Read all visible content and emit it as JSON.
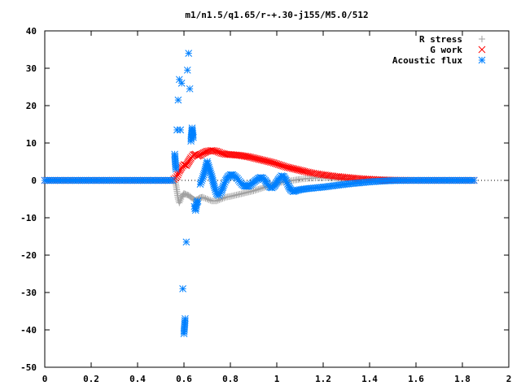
{
  "chart_data": {
    "type": "scatter",
    "title": "m1/n1.5/q1.65/r-+.30-j155/M5.0/512",
    "xlabel": "",
    "ylabel": "",
    "xlim": [
      0,
      2
    ],
    "ylim": [
      -50,
      40
    ],
    "xticks": [
      0,
      0.2,
      0.4,
      0.6,
      0.8,
      1,
      1.2,
      1.4,
      1.6,
      1.8,
      2
    ],
    "xtick_labels": [
      "0",
      "0.2",
      "0.4",
      "0.6",
      "0.8",
      "1",
      "1.2",
      "1.4",
      "1.6",
      "1.8",
      "2"
    ],
    "yticks": [
      -50,
      -40,
      -30,
      -20,
      -10,
      0,
      10,
      20,
      30,
      40
    ],
    "ytick_labels": [
      "-50",
      "-40",
      "-30",
      "-20",
      "-10",
      "0",
      "10",
      "20",
      "30",
      "40"
    ],
    "grid": false,
    "legend_position": "top-right",
    "series": [
      {
        "name": "R stress",
        "marker": "+",
        "color": "#a0a0a0",
        "points": [
          [
            0.0,
            0.0
          ],
          [
            0.1,
            0.0
          ],
          [
            0.2,
            0.0
          ],
          [
            0.3,
            0.0
          ],
          [
            0.4,
            0.0
          ],
          [
            0.5,
            0.0
          ],
          [
            0.55,
            0.0
          ],
          [
            0.56,
            0.5
          ],
          [
            0.565,
            -1.0
          ],
          [
            0.57,
            -3.0
          ],
          [
            0.575,
            -5.0
          ],
          [
            0.58,
            -6.0
          ],
          [
            0.59,
            -4.5
          ],
          [
            0.6,
            -3.5
          ],
          [
            0.61,
            -3.8
          ],
          [
            0.62,
            -4.0
          ],
          [
            0.63,
            -4.5
          ],
          [
            0.64,
            -5.0
          ],
          [
            0.65,
            -5.3
          ],
          [
            0.66,
            -5.0
          ],
          [
            0.67,
            -4.6
          ],
          [
            0.68,
            -4.5
          ],
          [
            0.7,
            -5.0
          ],
          [
            0.72,
            -5.5
          ],
          [
            0.74,
            -5.5
          ],
          [
            0.76,
            -5.0
          ],
          [
            0.78,
            -4.5
          ],
          [
            0.8,
            -4.3
          ],
          [
            0.82,
            -4.0
          ],
          [
            0.84,
            -3.7
          ],
          [
            0.86,
            -3.4
          ],
          [
            0.88,
            -3.1
          ],
          [
            0.9,
            -2.8
          ],
          [
            0.92,
            -2.4
          ],
          [
            0.94,
            -2.0
          ],
          [
            0.96,
            -1.6
          ],
          [
            0.98,
            -1.2
          ],
          [
            1.0,
            -0.8
          ],
          [
            1.02,
            -0.5
          ],
          [
            1.05,
            -0.2
          ],
          [
            1.08,
            0.1
          ],
          [
            1.1,
            0.3
          ],
          [
            1.15,
            0.6
          ],
          [
            1.2,
            0.7
          ],
          [
            1.25,
            0.6
          ],
          [
            1.3,
            0.4
          ],
          [
            1.35,
            0.25
          ],
          [
            1.4,
            0.15
          ],
          [
            1.5,
            0.05
          ],
          [
            1.6,
            0.0
          ],
          [
            1.7,
            0.0
          ],
          [
            1.8,
            0.0
          ],
          [
            1.85,
            0.0
          ]
        ]
      },
      {
        "name": "G work",
        "marker": "x",
        "color": "#ff0000",
        "points": [
          [
            0.0,
            0.0
          ],
          [
            0.1,
            0.0
          ],
          [
            0.2,
            0.0
          ],
          [
            0.3,
            0.0
          ],
          [
            0.4,
            0.0
          ],
          [
            0.5,
            0.0
          ],
          [
            0.55,
            0.0
          ],
          [
            0.57,
            1.0
          ],
          [
            0.58,
            2.5
          ],
          [
            0.59,
            3.5
          ],
          [
            0.6,
            4.2
          ],
          [
            0.61,
            4.0
          ],
          [
            0.62,
            5.0
          ],
          [
            0.63,
            6.0
          ],
          [
            0.64,
            6.8
          ],
          [
            0.65,
            7.0
          ],
          [
            0.66,
            6.5
          ],
          [
            0.67,
            6.8
          ],
          [
            0.68,
            7.2
          ],
          [
            0.69,
            7.5
          ],
          [
            0.7,
            7.8
          ],
          [
            0.72,
            8.0
          ],
          [
            0.74,
            7.8
          ],
          [
            0.76,
            7.3
          ],
          [
            0.78,
            7.0
          ],
          [
            0.8,
            6.9
          ],
          [
            0.82,
            6.8
          ],
          [
            0.84,
            6.7
          ],
          [
            0.86,
            6.5
          ],
          [
            0.88,
            6.3
          ],
          [
            0.9,
            6.0
          ],
          [
            0.92,
            5.7
          ],
          [
            0.94,
            5.4
          ],
          [
            0.96,
            5.1
          ],
          [
            0.98,
            4.8
          ],
          [
            1.0,
            4.4
          ],
          [
            1.02,
            4.0
          ],
          [
            1.04,
            3.6
          ],
          [
            1.06,
            3.3
          ],
          [
            1.08,
            3.0
          ],
          [
            1.1,
            2.7
          ],
          [
            1.12,
            2.4
          ],
          [
            1.15,
            2.0
          ],
          [
            1.2,
            1.5
          ],
          [
            1.25,
            1.1
          ],
          [
            1.3,
            0.8
          ],
          [
            1.35,
            0.5
          ],
          [
            1.4,
            0.3
          ],
          [
            1.45,
            0.15
          ],
          [
            1.5,
            0.05
          ],
          [
            1.6,
            0.0
          ],
          [
            1.7,
            0.0
          ],
          [
            1.8,
            0.0
          ],
          [
            1.85,
            0.0
          ]
        ]
      },
      {
        "name": "Acoustic flux",
        "marker": "*",
        "color": "#0080ff",
        "points": [
          [
            0.0,
            0.0
          ],
          [
            0.05,
            0.0
          ],
          [
            0.1,
            0.0
          ],
          [
            0.15,
            0.0
          ],
          [
            0.2,
            0.0
          ],
          [
            0.25,
            0.0
          ],
          [
            0.3,
            0.0
          ],
          [
            0.35,
            0.0
          ],
          [
            0.4,
            0.0
          ],
          [
            0.45,
            0.0
          ],
          [
            0.5,
            0.0
          ],
          [
            0.55,
            0.0
          ],
          [
            0.56,
            7.0
          ],
          [
            0.565,
            3.0
          ],
          [
            0.57,
            13.5
          ],
          [
            0.575,
            21.5
          ],
          [
            0.58,
            27.0
          ],
          [
            0.585,
            13.5
          ],
          [
            0.59,
            26.0
          ],
          [
            0.595,
            -29.0
          ],
          [
            0.6,
            -41.0
          ],
          [
            0.605,
            -37.0
          ],
          [
            0.61,
            -16.5
          ],
          [
            0.615,
            29.5
          ],
          [
            0.62,
            34.0
          ],
          [
            0.625,
            24.5
          ],
          [
            0.63,
            10.5
          ],
          [
            0.635,
            14.0
          ],
          [
            0.64,
            11.5
          ],
          [
            0.645,
            -7.0
          ],
          [
            0.65,
            -8.0
          ],
          [
            0.655,
            -6.0
          ],
          [
            0.66,
            -5.5
          ],
          [
            0.67,
            -1.0
          ],
          [
            0.68,
            0.5
          ],
          [
            0.69,
            2.5
          ],
          [
            0.7,
            5.0
          ],
          [
            0.71,
            3.0
          ],
          [
            0.72,
            1.0
          ],
          [
            0.73,
            -1.5
          ],
          [
            0.74,
            -3.5
          ],
          [
            0.75,
            -4.0
          ],
          [
            0.76,
            -3.2
          ],
          [
            0.77,
            -1.5
          ],
          [
            0.78,
            0.0
          ],
          [
            0.79,
            1.0
          ],
          [
            0.8,
            1.5
          ],
          [
            0.81,
            1.5
          ],
          [
            0.82,
            1.0
          ],
          [
            0.83,
            0.5
          ],
          [
            0.84,
            -0.3
          ],
          [
            0.85,
            -1.0
          ],
          [
            0.86,
            -1.5
          ],
          [
            0.87,
            -1.6
          ],
          [
            0.88,
            -1.5
          ],
          [
            0.89,
            -1.0
          ],
          [
            0.9,
            -0.5
          ],
          [
            0.91,
            0.0
          ],
          [
            0.92,
            0.5
          ],
          [
            0.93,
            0.8
          ],
          [
            0.94,
            0.6
          ],
          [
            0.95,
            0.0
          ],
          [
            0.96,
            -1.0
          ],
          [
            0.97,
            -1.8
          ],
          [
            0.98,
            -2.0
          ],
          [
            0.99,
            -1.5
          ],
          [
            1.0,
            -0.5
          ],
          [
            1.01,
            0.5
          ],
          [
            1.02,
            1.2
          ],
          [
            1.03,
            1.0
          ],
          [
            1.04,
            0.0
          ],
          [
            1.05,
            -1.5
          ],
          [
            1.06,
            -2.5
          ],
          [
            1.07,
            -3.0
          ],
          [
            1.08,
            -2.8
          ],
          [
            1.1,
            -2.5
          ],
          [
            1.12,
            -2.3
          ],
          [
            1.15,
            -2.1
          ],
          [
            1.2,
            -1.8
          ],
          [
            1.25,
            -1.4
          ],
          [
            1.3,
            -1.0
          ],
          [
            1.35,
            -0.7
          ],
          [
            1.4,
            -0.4
          ],
          [
            1.45,
            -0.2
          ],
          [
            1.5,
            -0.05
          ],
          [
            1.6,
            0.0
          ],
          [
            1.7,
            0.0
          ],
          [
            1.8,
            0.0
          ],
          [
            1.85,
            0.0
          ]
        ]
      }
    ]
  }
}
